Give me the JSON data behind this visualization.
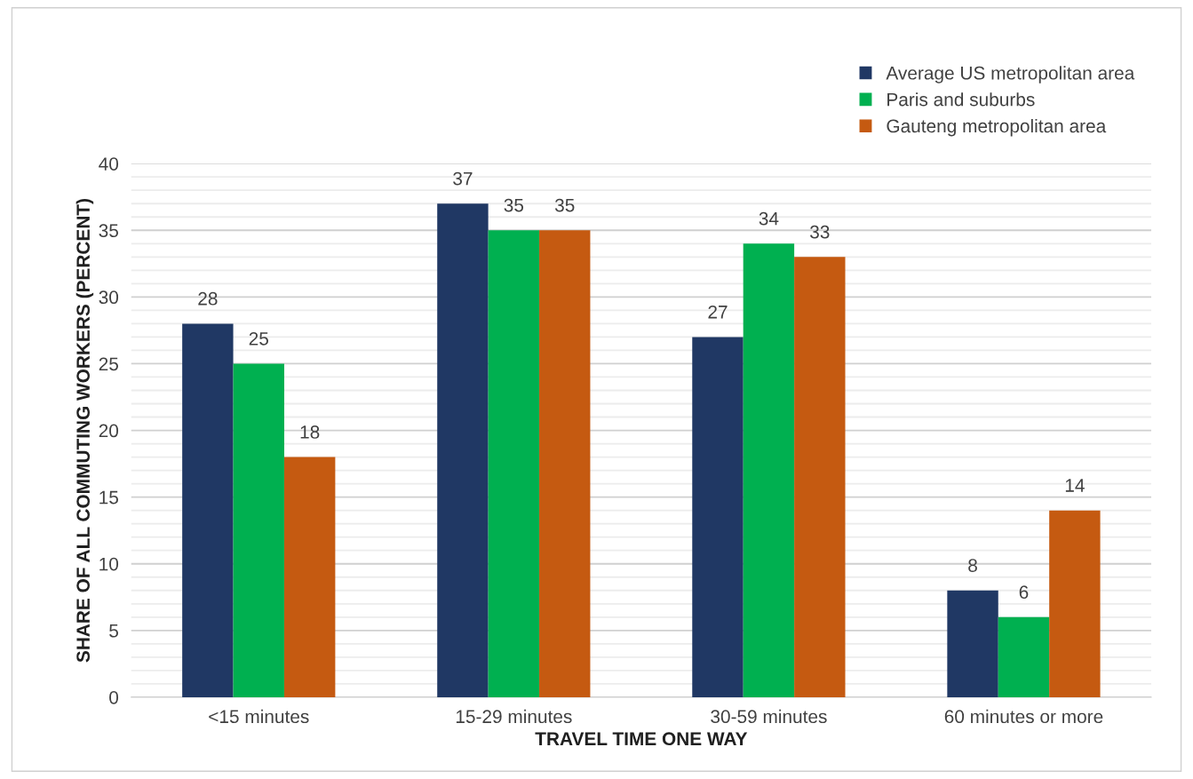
{
  "chart_data": {
    "type": "bar",
    "xlabel": "TRAVEL TIME ONE WAY",
    "ylabel": "SHARE OF ALL COMMUTING WORKERS (PERCENT)",
    "categories": [
      "<15 minutes",
      "15-29 minutes",
      "30-59 minutes",
      "60 minutes or more"
    ],
    "series": [
      {
        "name": "Average US metropolitan area",
        "color": "#203864",
        "values": [
          28,
          37,
          27,
          8
        ]
      },
      {
        "name": "Paris and suburbs",
        "color": "#00b050",
        "values": [
          25,
          35,
          34,
          6
        ]
      },
      {
        "name": "Gauteng metropolitan area",
        "color": "#c55a11",
        "values": [
          18,
          35,
          33,
          14
        ]
      }
    ],
    "ylim": [
      0,
      40
    ],
    "yticks": [
      0,
      {
        "value": 1,
        "label": null
      },
      {
        "value": 2,
        "label": null
      },
      {
        "value": 3,
        "label": null
      },
      {
        "value": 4,
        "label": null
      },
      5,
      {
        "value": 6,
        "label": null
      },
      {
        "value": 7,
        "label": null
      },
      {
        "value": 8,
        "label": null
      },
      {
        "value": 9,
        "label": null
      },
      10,
      {
        "value": 11,
        "label": null
      },
      {
        "value": 12,
        "label": null
      },
      {
        "value": 13,
        "label": null
      },
      {
        "value": 14,
        "label": null
      },
      15,
      {
        "value": 16,
        "label": null
      },
      {
        "value": 17,
        "label": null
      },
      {
        "value": 18,
        "label": null
      },
      {
        "value": 19,
        "label": null
      },
      20,
      {
        "value": 21,
        "label": null
      },
      {
        "value": 22,
        "label": null
      },
      {
        "value": 23,
        "label": null
      },
      {
        "value": 24,
        "label": null
      },
      25,
      {
        "value": 26,
        "label": null
      },
      {
        "value": 27,
        "label": null
      },
      {
        "value": 28,
        "label": null
      },
      {
        "value": 29,
        "label": null
      },
      30,
      {
        "value": 31,
        "label": null
      },
      {
        "value": 32,
        "label": null
      },
      {
        "value": 33,
        "label": null
      },
      {
        "value": 34,
        "label": null
      },
      35,
      {
        "value": 36,
        "label": null
      },
      {
        "value": 37,
        "label": null
      },
      {
        "value": 38,
        "label": null
      },
      {
        "value": 39,
        "label": null
      },
      40
    ],
    "grid": "y",
    "legend": "top right",
    "data_labels": true
  }
}
